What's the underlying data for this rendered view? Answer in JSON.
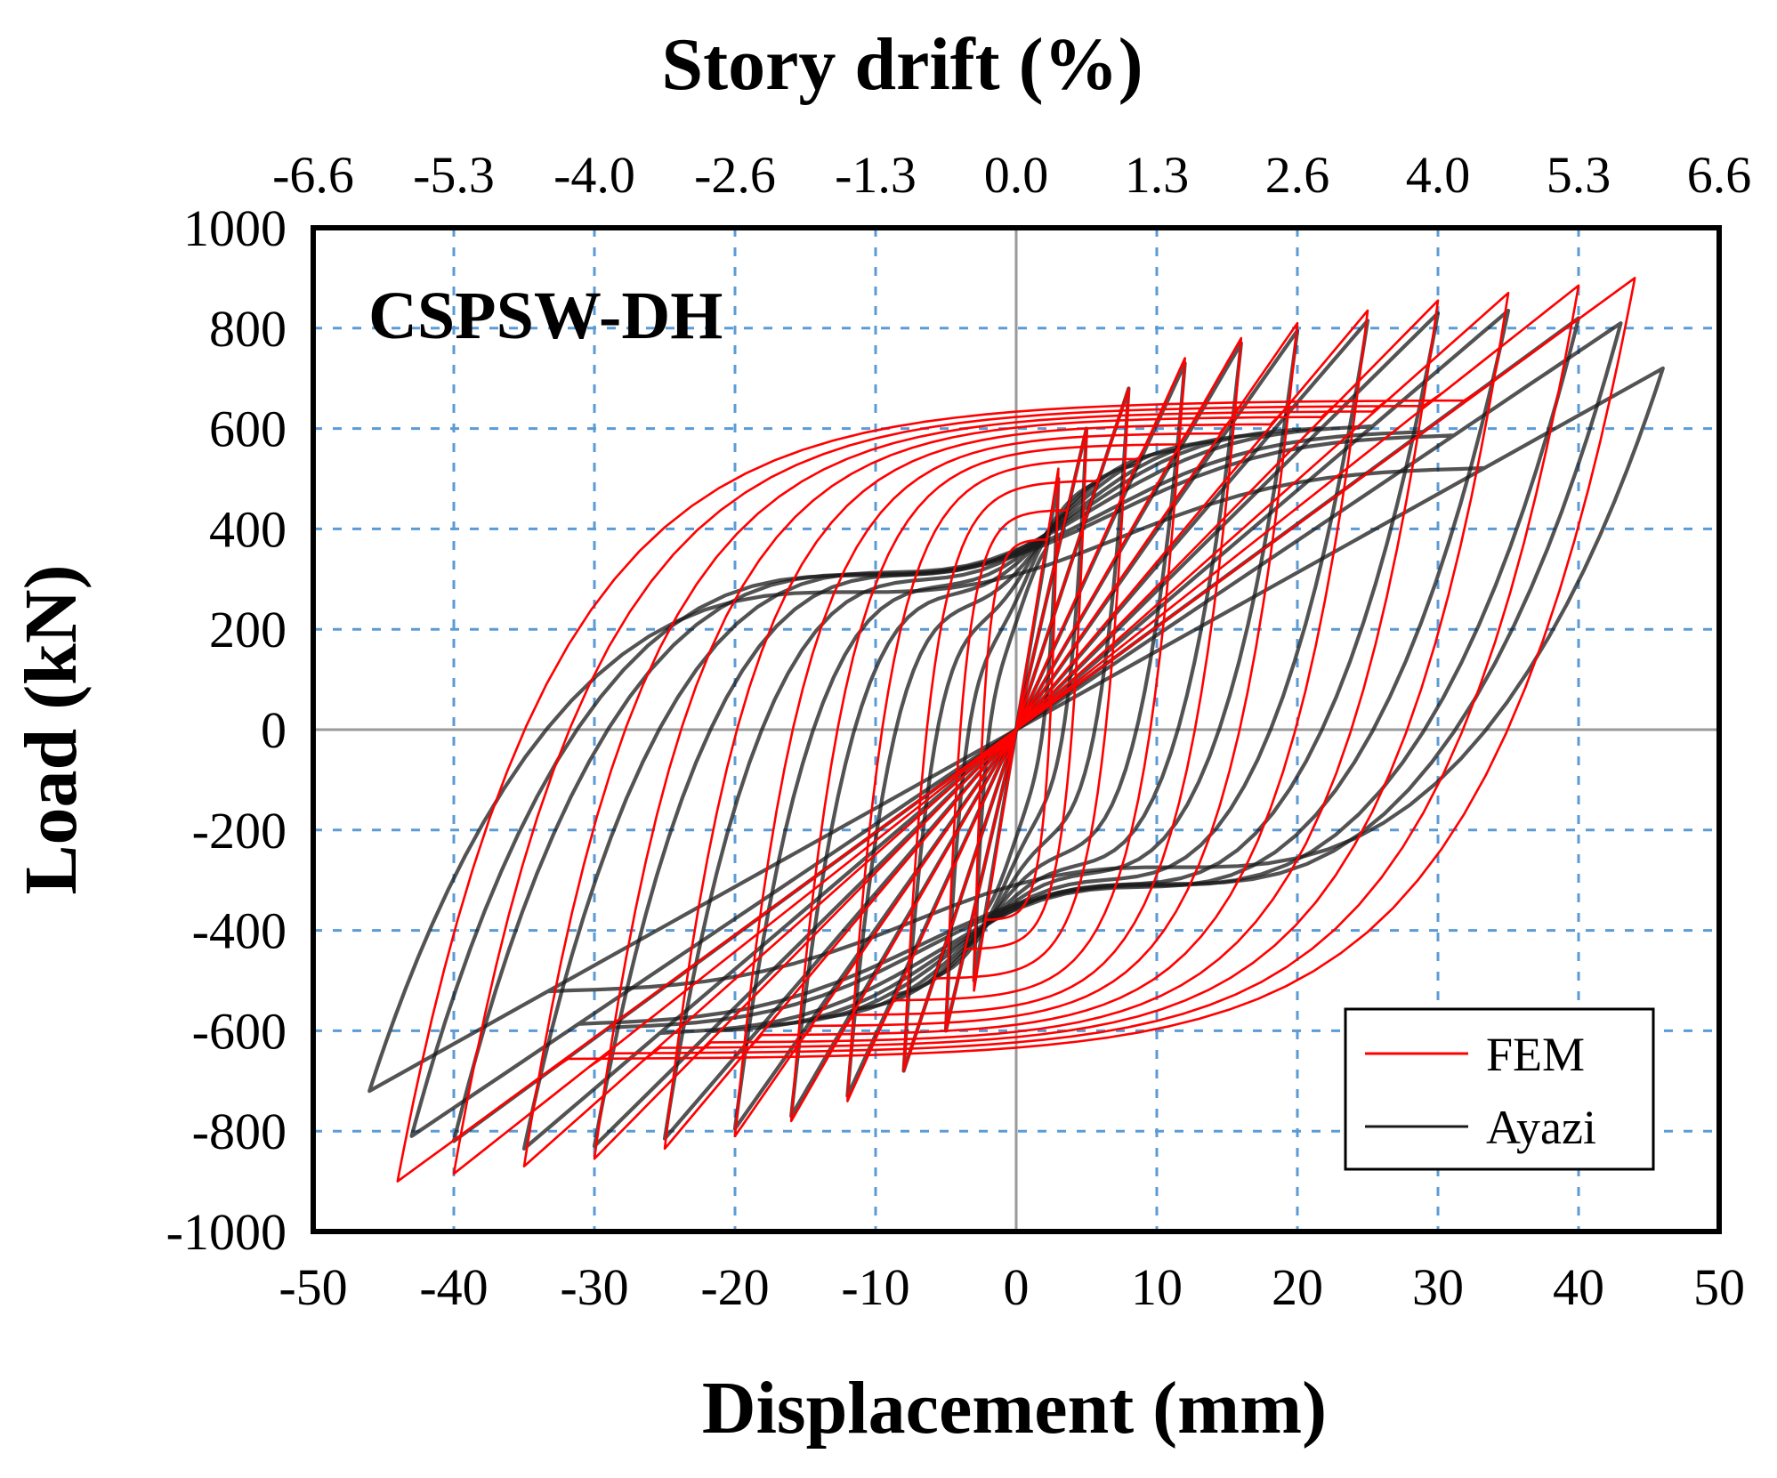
{
  "chart_data": {
    "type": "line",
    "title": "CSPSW-DH",
    "xlabel": "Displacement (mm)",
    "ylabel": "Load (kN)",
    "x2label": "Story drift (%)",
    "xlim": [
      -50,
      50
    ],
    "ylim": [
      -1000,
      1000
    ],
    "x_ticks": [
      "-50",
      "-40",
      "-30",
      "-20",
      "-10",
      "0",
      "10",
      "20",
      "30",
      "40",
      "50"
    ],
    "y_ticks": [
      "1000",
      "800",
      "600",
      "400",
      "200",
      "0",
      "-200",
      "-400",
      "-600",
      "-800",
      "-1000"
    ],
    "x2_ticks": [
      "-6.6",
      "-5.3",
      "-4.0",
      "-2.6",
      "-1.3",
      "0.0",
      "1.3",
      "2.6",
      "4.0",
      "5.3",
      "6.6"
    ],
    "grid": true,
    "legend_position": "bottom-right",
    "series": [
      {
        "name": "FEM",
        "color": "#ff0000",
        "loops": [
          {
            "amplitude": 3,
            "peak_load": 520
          },
          {
            "amplitude": 5,
            "peak_load": 600
          },
          {
            "amplitude": 8,
            "peak_load": 680
          },
          {
            "amplitude": 12,
            "peak_load": 740
          },
          {
            "amplitude": 16,
            "peak_load": 780
          },
          {
            "amplitude": 20,
            "peak_load": 810
          },
          {
            "amplitude": 25,
            "peak_load": 835
          },
          {
            "amplitude": 30,
            "peak_load": 855
          },
          {
            "amplitude": 35,
            "peak_load": 870
          },
          {
            "amplitude": 40,
            "peak_load": 885
          },
          {
            "amplitude": 44,
            "peak_load": 900
          }
        ]
      },
      {
        "name": "Ayazi",
        "color": "#1a1a1a",
        "loops": [
          {
            "amplitude": 3,
            "peak_load": 500
          },
          {
            "amplitude": 5,
            "peak_load": 600
          },
          {
            "amplitude": 8,
            "peak_load": 680
          },
          {
            "amplitude": 12,
            "peak_load": 730
          },
          {
            "amplitude": 16,
            "peak_load": 770
          },
          {
            "amplitude": 20,
            "peak_load": 795
          },
          {
            "amplitude": 25,
            "peak_load": 815
          },
          {
            "amplitude": 30,
            "peak_load": 830
          },
          {
            "amplitude": 35,
            "peak_load": 835
          },
          {
            "amplitude": 40,
            "peak_load": 820
          },
          {
            "amplitude": 43,
            "peak_load": 810
          },
          {
            "amplitude": 46,
            "peak_load": 720
          }
        ]
      }
    ]
  }
}
